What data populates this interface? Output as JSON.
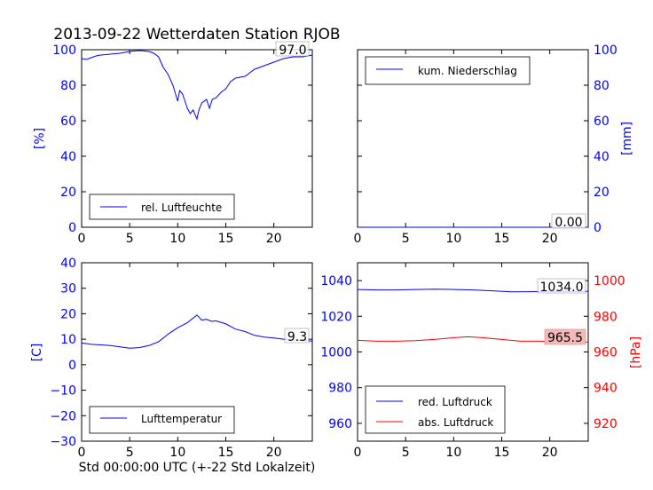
{
  "title": "2013-09-22 Wetterdaten Station RJOB",
  "xlabel": "Std 00:00:00 UTC (+-22 Std Lokalzeit)",
  "colors": {
    "blue": "#0000ff",
    "red": "#ff0000",
    "text": "#000000"
  },
  "chart_data": [
    {
      "type": "line",
      "xlim": [
        0,
        24
      ],
      "ylim": [
        0,
        100
      ],
      "xticks": [
        "0",
        "5",
        "10",
        "15",
        "20"
      ],
      "yticks": [
        "0",
        "20",
        "40",
        "60",
        "80",
        "100"
      ],
      "ylabel": "[%]",
      "legend": {
        "placement": "lower-left",
        "entries": [
          "rel. Luftfeuchte"
        ]
      },
      "annotation": "97.0",
      "series": [
        {
          "name": "rel. Luftfeuchte",
          "color": "#0000ff",
          "x": [
            0,
            0.5,
            1,
            1.5,
            2,
            3,
            4,
            5,
            5.5,
            6,
            6.5,
            7,
            7.5,
            8,
            8.5,
            9,
            9.5,
            10,
            10.2,
            10.5,
            11,
            11.3,
            11.6,
            12,
            12.2,
            12.5,
            13,
            13.3,
            13.6,
            14,
            14.5,
            15,
            15.5,
            16,
            17,
            18,
            19,
            20,
            21,
            22,
            23,
            24
          ],
          "y": [
            95,
            94.5,
            95.5,
            96.5,
            97,
            97.5,
            98,
            99,
            99.3,
            99.5,
            99.3,
            99,
            98,
            96,
            90,
            86,
            80,
            71,
            77,
            75,
            67,
            64,
            66,
            61,
            66,
            70,
            72,
            67,
            72,
            73,
            76,
            78,
            82,
            84,
            85,
            89,
            91,
            93,
            95,
            96,
            96,
            97
          ]
        }
      ]
    },
    {
      "type": "line",
      "xlim": [
        0,
        24
      ],
      "ylim": [
        0,
        100
      ],
      "xticks": [
        "0",
        "5",
        "10",
        "15",
        "20"
      ],
      "yticks": [
        "0",
        "20",
        "40",
        "60",
        "80",
        "100"
      ],
      "ylabel": "[mm]",
      "legend": {
        "placement": "top-left",
        "entries": [
          "kum. Niederschlag"
        ]
      },
      "annotation": "0.00",
      "series": [
        {
          "name": "kum. Niederschlag",
          "color": "#0000ff",
          "x": [
            0,
            24
          ],
          "y": [
            0,
            0
          ]
        }
      ]
    },
    {
      "type": "line",
      "xlim": [
        0,
        24
      ],
      "ylim": [
        -30,
        40
      ],
      "xticks": [
        "0",
        "5",
        "10",
        "15",
        "20"
      ],
      "yticks": [
        "−30",
        "−20",
        "−10",
        "0",
        "10",
        "20",
        "30",
        "40"
      ],
      "ylabel": "[C]",
      "legend": {
        "placement": "lower-left",
        "entries": [
          "Lufttemperatur"
        ]
      },
      "annotation": "9.3",
      "series": [
        {
          "name": "Lufttemperatur",
          "color": "#0000ff",
          "x": [
            0,
            1,
            2,
            3,
            4,
            5,
            6,
            7,
            8,
            9,
            10,
            10.5,
            11,
            11.5,
            12,
            12.5,
            13,
            13.5,
            14,
            15,
            16,
            17,
            18,
            19,
            20,
            21,
            22,
            23,
            24
          ],
          "y": [
            8.5,
            8,
            7.8,
            7.5,
            7,
            6.5,
            6.7,
            7.5,
            9,
            12,
            14.5,
            15.5,
            16.5,
            18,
            19.5,
            17.5,
            17.8,
            17,
            17.2,
            16,
            14,
            13,
            11.5,
            10.8,
            10.5,
            10,
            9.7,
            9.5,
            9.3
          ]
        }
      ]
    },
    {
      "type": "line",
      "xlim": [
        0,
        24
      ],
      "ylim": [
        950,
        1050
      ],
      "y2lim": [
        910,
        1010
      ],
      "xticks": [
        "0",
        "5",
        "10",
        "15",
        "20"
      ],
      "yticks": [
        "960",
        "980",
        "1000",
        "1020",
        "1040"
      ],
      "y2ticks": [
        "920",
        "940",
        "960",
        "980",
        "1000"
      ],
      "y2label": "[hPa]",
      "legend": {
        "placement": "lower-left",
        "entries": [
          "red. Luftdruck",
          "abs. Luftdruck"
        ]
      },
      "annotations": [
        "1034.0",
        "965.5"
      ],
      "series": [
        {
          "name": "red. Luftdruck",
          "color": "#0000ff",
          "axis": "left",
          "x": [
            0,
            2,
            4,
            6,
            8,
            10,
            12,
            14,
            16,
            18,
            20,
            22,
            24
          ],
          "y": [
            1035,
            1034.8,
            1034.8,
            1035,
            1035.2,
            1035,
            1034.8,
            1034.3,
            1033.7,
            1033.8,
            1034,
            1034,
            1034
          ]
        },
        {
          "name": "abs. Luftdruck",
          "color": "#ff0000",
          "axis": "right",
          "x": [
            0,
            2,
            4,
            6,
            8,
            10,
            11.5,
            13,
            15,
            17,
            19,
            21,
            23,
            24
          ],
          "y": [
            966.5,
            966,
            966,
            966.3,
            967,
            968,
            968.5,
            968,
            967,
            966,
            966,
            965.8,
            965.6,
            965.5
          ]
        }
      ]
    }
  ]
}
